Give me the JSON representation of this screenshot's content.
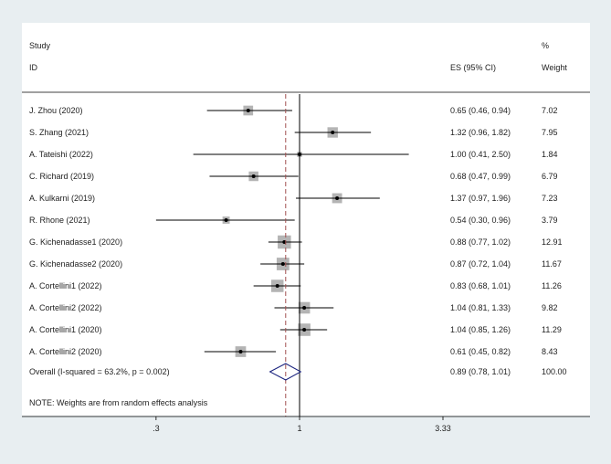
{
  "chart_data": {
    "type": "forest",
    "headers": {
      "study_line1": "Study",
      "study_line2": "ID",
      "es": "ES (95% CI)",
      "weight_line1": "%",
      "weight_line2": "Weight"
    },
    "studies": [
      {
        "id": "J. Zhou (2020)",
        "es": 0.65,
        "lo": 0.46,
        "hi": 0.94,
        "es_text": "0.65 (0.46, 0.94)",
        "weight": "7.02"
      },
      {
        "id": "S. Zhang (2021)",
        "es": 1.32,
        "lo": 0.96,
        "hi": 1.82,
        "es_text": "1.32 (0.96, 1.82)",
        "weight": "7.95"
      },
      {
        "id": "A. Tateishi (2022)",
        "es": 1.0,
        "lo": 0.41,
        "hi": 2.5,
        "es_text": "1.00 (0.41, 2.50)",
        "weight": "1.84"
      },
      {
        "id": "C. Richard (2019)",
        "es": 0.68,
        "lo": 0.47,
        "hi": 0.99,
        "es_text": "0.68 (0.47, 0.99)",
        "weight": "6.79"
      },
      {
        "id": "A. Kulkarni (2019)",
        "es": 1.37,
        "lo": 0.97,
        "hi": 1.96,
        "es_text": "1.37 (0.97, 1.96)",
        "weight": "7.23"
      },
      {
        "id": "R. Rhone (2021)",
        "es": 0.54,
        "lo": 0.3,
        "hi": 0.96,
        "es_text": "0.54 (0.30, 0.96)",
        "weight": "3.79"
      },
      {
        "id": "G. Kichenadasse1 (2020)",
        "es": 0.88,
        "lo": 0.77,
        "hi": 1.02,
        "es_text": "0.88 (0.77, 1.02)",
        "weight": "12.91"
      },
      {
        "id": "G. Kichenadasse2 (2020)",
        "es": 0.87,
        "lo": 0.72,
        "hi": 1.04,
        "es_text": "0.87 (0.72, 1.04)",
        "weight": "11.67"
      },
      {
        "id": "A. Cortellini1 (2022)",
        "es": 0.83,
        "lo": 0.68,
        "hi": 1.01,
        "es_text": "0.83 (0.68, 1.01)",
        "weight": "11.26"
      },
      {
        "id": "A. Cortellini2 (2022)",
        "es": 1.04,
        "lo": 0.81,
        "hi": 1.33,
        "es_text": "1.04 (0.81, 1.33)",
        "weight": "9.82"
      },
      {
        "id": "A. Cortellini1 (2020)",
        "es": 1.04,
        "lo": 0.85,
        "hi": 1.26,
        "es_text": "1.04 (0.85, 1.26)",
        "weight": "11.29"
      },
      {
        "id": "A. Cortellini2 (2020)",
        "es": 0.61,
        "lo": 0.45,
        "hi": 0.82,
        "es_text": "0.61 (0.45, 0.82)",
        "weight": "8.43"
      }
    ],
    "overall": {
      "label": "Overall  (I-squared = 63.2%, p = 0.002)",
      "es": 0.89,
      "lo": 0.78,
      "hi": 1.01,
      "es_text": "0.89 (0.78, 1.01)",
      "weight": "100.00"
    },
    "note": "NOTE: Weights are from random effects analysis",
    "x_axis": {
      "scale": "log",
      "range": [
        0.2,
        3.33
      ],
      "ticks": [
        {
          "value": 0.3,
          "label": ".3"
        },
        {
          "value": 1,
          "label": "1"
        },
        {
          "value": 3.33,
          "label": "3.33"
        }
      ],
      "null_line": 1
    },
    "colors": {
      "background": "#e8eef1",
      "plot_area": "#ffffff",
      "weight_box": "#b4b4b4",
      "ci_line": "#000000",
      "overall_line": "#a05050",
      "diamond": "#1a237e"
    }
  }
}
